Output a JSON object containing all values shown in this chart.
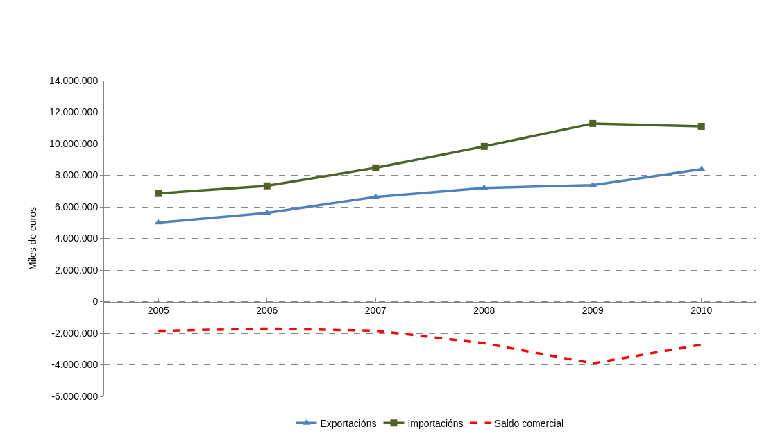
{
  "chart_data": {
    "type": "line",
    "ylabel": "Miles de euros",
    "categories": [
      "2005",
      "2006",
      "2007",
      "2008",
      "2009",
      "2010"
    ],
    "series": [
      {
        "name": "Exportacións",
        "color": "#4f81bd",
        "marker": "triangle",
        "line_style": "solid",
        "values": [
          5000000,
          5620000,
          6630000,
          7200000,
          7370000,
          8380000
        ]
      },
      {
        "name": "Importacións",
        "color": "#4f6228",
        "marker": "square",
        "line_style": "solid",
        "values": [
          6850000,
          7330000,
          8470000,
          9830000,
          11280000,
          11100000
        ]
      },
      {
        "name": "Saldo comercial",
        "color": "#ff0000",
        "marker": "none",
        "line_style": "dashed",
        "values": [
          -1850000,
          -1710000,
          -1840000,
          -2630000,
          -3910000,
          -2720000
        ]
      }
    ],
    "ylim": [
      -6000000,
      14000000
    ],
    "yticks": [
      {
        "value": -6000000,
        "label": "-6.000.000"
      },
      {
        "value": -4000000,
        "label": "-4.000.000"
      },
      {
        "value": -2000000,
        "label": "-2.000.000"
      },
      0,
      {
        "value": 2000000,
        "label": "2.000.000"
      },
      {
        "value": 4000000,
        "label": "4.000.000"
      },
      {
        "value": 6000000,
        "label": "6.000.000"
      },
      {
        "value": 8000000,
        "label": "8.000.000"
      },
      {
        "value": 10000000,
        "label": "10.000.000"
      },
      {
        "value": 12000000,
        "label": "12.000.000"
      },
      {
        "value": 14000000,
        "label": "14.000.000"
      }
    ],
    "grid": "y",
    "legend": "bottom"
  }
}
